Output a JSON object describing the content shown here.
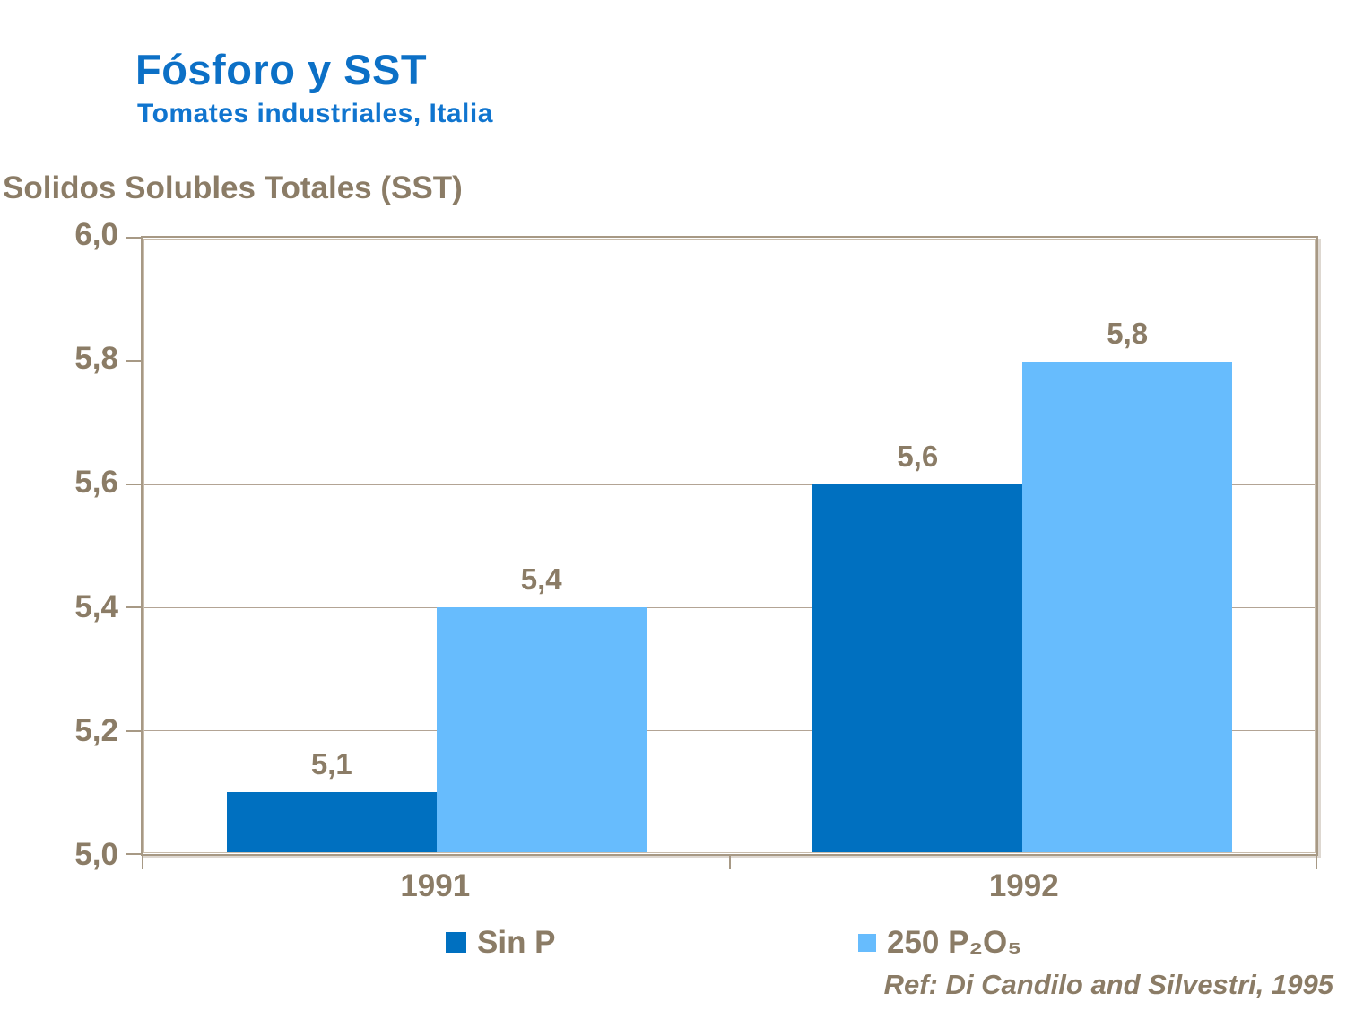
{
  "chart_data": {
    "type": "bar",
    "title": "Fósforo y SST",
    "subtitle": "Tomates industriales, Italia",
    "y_axis_title": "Solidos Solubles Totales (SST)",
    "categories": [
      "1991",
      "1992"
    ],
    "series": [
      {
        "name": "Sin P",
        "color": "#0070C0",
        "values": [
          5.1,
          5.6
        ],
        "value_labels": [
          "5,1",
          "5,6"
        ]
      },
      {
        "name": "250 P₂O₅",
        "color": "#67BCFD",
        "values": [
          5.4,
          5.8
        ],
        "value_labels": [
          "5,4",
          "5,8"
        ]
      }
    ],
    "ylim": [
      5.0,
      6.0
    ],
    "ytick_labels": [
      "6,0",
      "5,8",
      "5,6",
      "5,4",
      "5,2",
      "5,0"
    ],
    "grid": true,
    "legend_position": "bottom",
    "reference": "Ref: Di Candilo and Silvestri, 1995",
    "colors": {
      "title_blue": "#0C70C6",
      "subtitle_blue": "#1075CF",
      "text_brown": "#8B7C66",
      "axis_line_tan": "#A79985",
      "gridline_tan": "#B3A495",
      "series_dark_blue": "#0070C0",
      "series_light_blue": "#67BCFD"
    }
  }
}
